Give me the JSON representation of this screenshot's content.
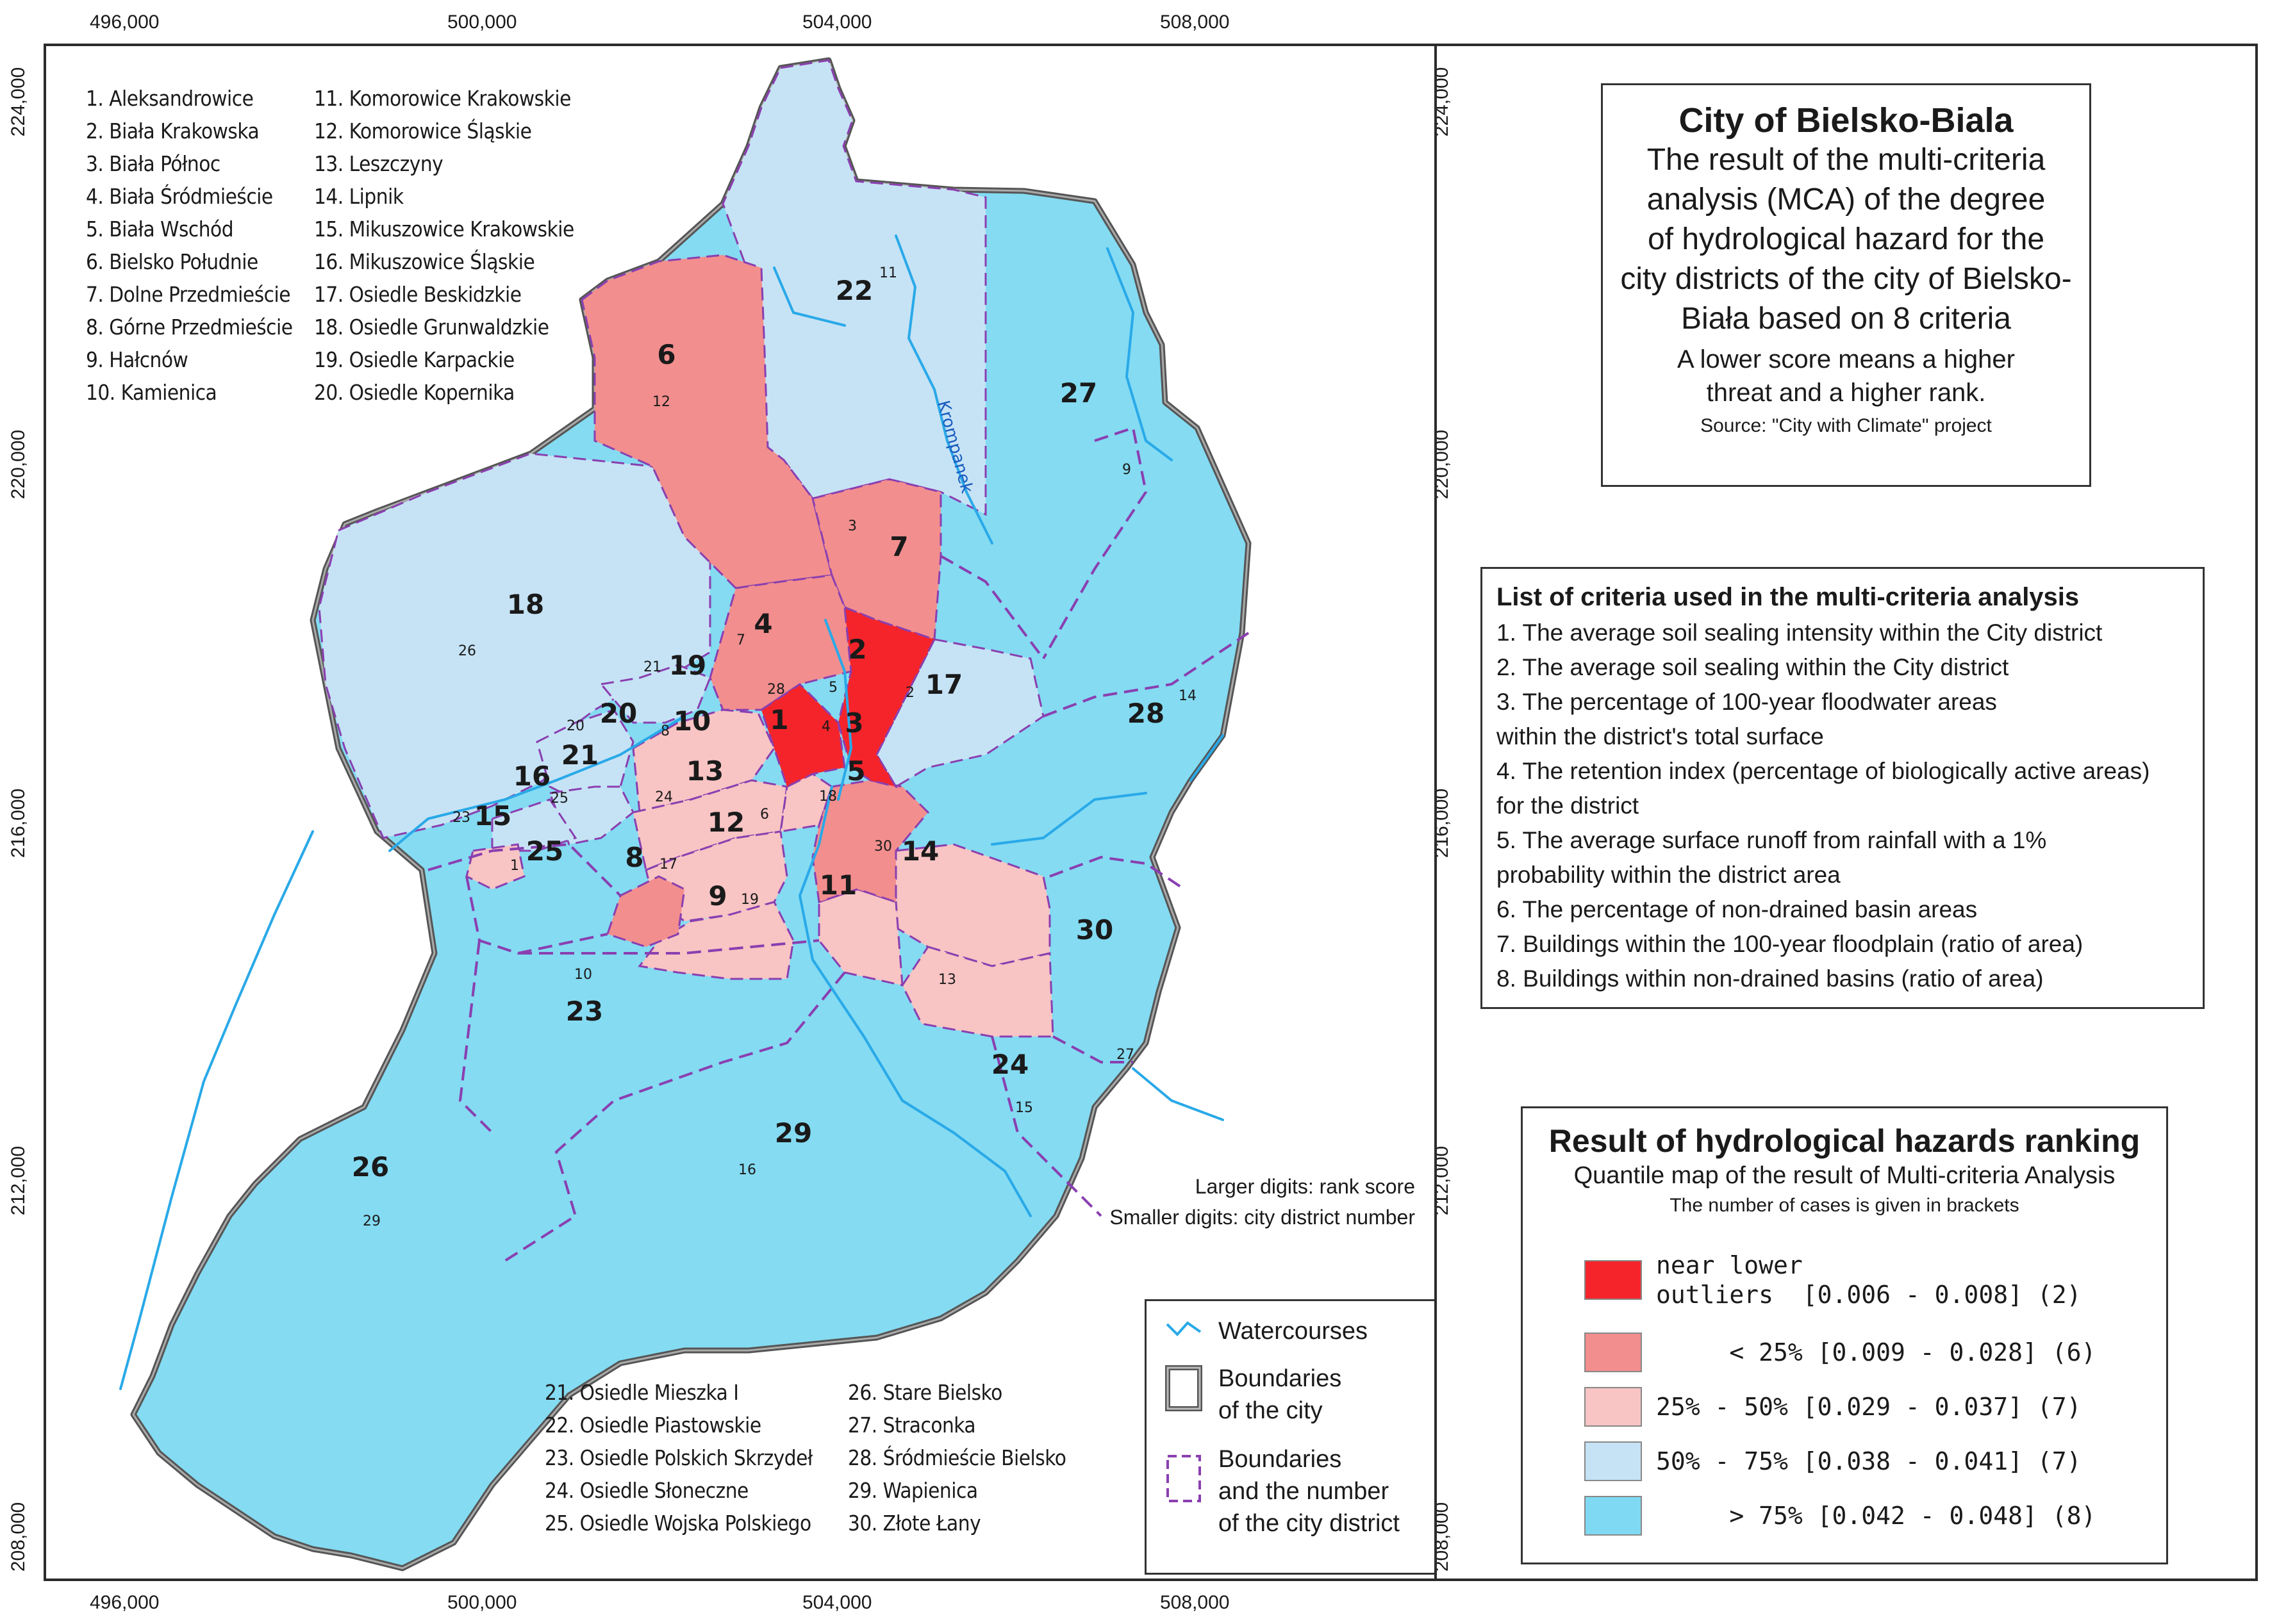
{
  "coordinates": {
    "x_top": [
      "496,000",
      "500,000",
      "504,000",
      "508,000"
    ],
    "x_bottom": [
      "496,000",
      "500,000",
      "504,000",
      "508,000"
    ],
    "y_left": [
      "224,000",
      "220,000",
      "216,000",
      "212,000",
      "208,000"
    ],
    "y_right": [
      "224,000",
      "220,000",
      "216,000",
      "212,000",
      "208,000"
    ]
  },
  "district_list_1": [
    "1. Aleksandrowice",
    "2. Biała Krakowska",
    "3. Biała Północ",
    "4. Biała Śródmieście",
    "5. Biała Wschód",
    "6. Bielsko Południe",
    "7. Dolne Przedmieście",
    "8. Górne Przedmieście",
    "9. Hałcnów",
    "10. Kamienica"
  ],
  "district_list_2": [
    "11. Komorowice Krakowskie",
    "12. Komorowice Śląskie",
    "13. Leszczyny",
    "14. Lipnik",
    "15. Mikuszowice Krakowskie",
    "16. Mikuszowice Śląskie",
    "17. Osiedle Beskidzkie",
    "18. Osiedle Grunwaldzkie",
    "19. Osiedle Karpackie",
    "20. Osiedle Kopernika"
  ],
  "district_list_3": [
    "21. Osiedle Mieszka I",
    "22. Osiedle Piastowskie",
    "23. Osiedle Polskich Skrzydeł",
    "24. Osiedle Słoneczne",
    "25. Osiedle Wojska Polskiego"
  ],
  "district_list_4": [
    "26. Stare Bielsko",
    "27. Straconka",
    "28. Śródmieście Bielsko",
    "29. Wapienica",
    "30. Złote Łany"
  ],
  "map_note": {
    "line1": "Larger digits: rank score",
    "line2": "Smaller digits: city district number"
  },
  "river_label": "Krompanek",
  "map_legend": {
    "watercourses": "Watercourses",
    "city_boundary_1": "Boundaries",
    "city_boundary_2": "of the city",
    "district_boundary_1": "Boundaries",
    "district_boundary_2": "and the number",
    "district_boundary_3": "of the city district"
  },
  "title": {
    "main": "City of Bielsko-Biala",
    "l1": "The result of the multi-criteria",
    "l2": "analysis (MCA) of the degree",
    "l3": "of hydrological hazard for the",
    "l4": "city districts of the city of Bielsko-",
    "l5": "Biała based on 8 criteria",
    "s1": "A lower score means a higher",
    "s2": "threat and a higher rank.",
    "source": "Source: \"City with Climate\" project"
  },
  "criteria": {
    "heading": "List of criteria used in the multi-criteria analysis",
    "lines": [
      "1. The average soil sealing intensity within the City district",
      "2. The average soil sealing within the City district",
      "3. The percentage of 100-year floodwater areas",
      "within the district's total surface",
      "4. The retention index (percentage of biologically active areas)",
      "for the district",
      "5. The average surface runoff from rainfall with a 1%",
      "probability within the district area",
      "6. The percentage of non-drained basin areas",
      "7. Buildings within the 100-year floodplain (ratio of area)",
      "8. Buildings within non-drained basins (ratio of area)"
    ]
  },
  "ranking": {
    "title": "Result of hydrological hazards ranking",
    "subtitle": "Quantile map of the result of Multi-criteria Analysis",
    "note": "The number of cases is given in brackets",
    "classes": [
      {
        "label": "near lower\noutliers  [0.006 - 0.008] (2)",
        "color": "#f5242a"
      },
      {
        "label": "     < 25% [0.009 - 0.028] (6)",
        "color": "#f28e8e"
      },
      {
        "label": "25% - 50% [0.029 - 0.037] (7)",
        "color": "#f8c4c4"
      },
      {
        "label": "50% - 75% [0.038 - 0.041] (7)",
        "color": "#c6e3f5"
      },
      {
        "label": "     > 75% [0.042 - 0.048] (8)",
        "color": "#7fd9f2"
      }
    ]
  },
  "district_labels": [
    {
      "rank": "6",
      "num": "12"
    },
    {
      "rank": "22",
      "num": "11"
    },
    {
      "rank": "27",
      "num": "9"
    },
    {
      "rank": "7",
      "num": "3"
    },
    {
      "rank": "18",
      "num": "26"
    },
    {
      "rank": "4",
      "num": "7"
    },
    {
      "rank": "2",
      "num": "5"
    },
    {
      "rank": "17",
      "num": "2"
    },
    {
      "rank": "28",
      "num": "14"
    },
    {
      "rank": "19",
      "num": "21"
    },
    {
      "rank": "1",
      "num": "28"
    },
    {
      "rank": "3",
      "num": "4"
    },
    {
      "rank": "20",
      "num": "20"
    },
    {
      "rank": "10",
      "num": "8"
    },
    {
      "rank": "21",
      "num": ""
    },
    {
      "rank": "13",
      "num": "24"
    },
    {
      "rank": "16",
      "num": "25"
    },
    {
      "rank": "15",
      "num": "23"
    },
    {
      "rank": "5",
      "num": "18"
    },
    {
      "rank": "12",
      "num": "6"
    },
    {
      "rank": "14",
      "num": "30"
    },
    {
      "rank": "25",
      "num": "1"
    },
    {
      "rank": "8",
      "num": "17"
    },
    {
      "rank": "9",
      "num": "19"
    },
    {
      "rank": "11",
      "num": ""
    },
    {
      "rank": "30",
      "num": "13"
    },
    {
      "rank": "23",
      "num": "10"
    },
    {
      "rank": "24",
      "num": "27"
    },
    {
      "rank": "26",
      "num": "15"
    },
    {
      "rank": "29",
      "num": "16"
    },
    {
      "rank": "",
      "num": "29"
    }
  ]
}
